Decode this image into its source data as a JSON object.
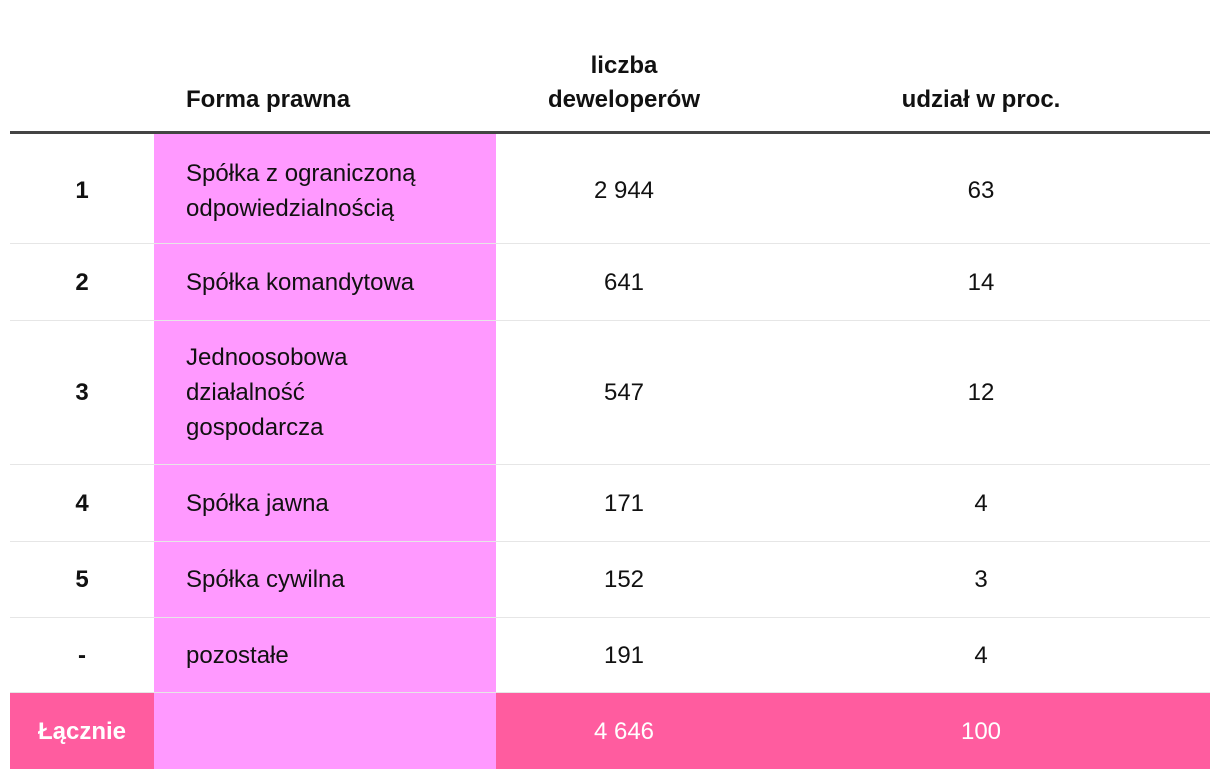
{
  "columns": {
    "num": "",
    "form": "Forma prawna",
    "developers_line1": "liczba",
    "developers_line2": "deweloperów",
    "share": "udział w proc."
  },
  "rows": [
    {
      "num": "1",
      "form": "Spółka z ograniczoną odpowiedzialnością",
      "developers": "2 944",
      "share": "63"
    },
    {
      "num": "2",
      "form": "Spółka komandytowa",
      "developers": "641",
      "share": "14"
    },
    {
      "num": "3",
      "form": "Jednoosobowa działalność gospodarcza",
      "developers": "547",
      "share": "12"
    },
    {
      "num": "4",
      "form": "Spółka jawna",
      "developers": "171",
      "share": "4"
    },
    {
      "num": "5",
      "form": "Spółka cywilna",
      "developers": "152",
      "share": "3"
    },
    {
      "num": "-",
      "form": "pozostałe",
      "developers": "191",
      "share": "4"
    }
  ],
  "total": {
    "label": "Łącznie",
    "form": "",
    "developers": "4 646",
    "share": "100"
  },
  "colors": {
    "highlight_column": "#ff99ff",
    "total_row": "#ff5c9f",
    "header_rule": "#444444"
  },
  "chart_data": {
    "type": "table",
    "columns": [
      "",
      "Forma prawna",
      "liczba deweloperów",
      "udział w proc."
    ],
    "rows": [
      [
        "1",
        "Spółka z ograniczoną odpowiedzialnością",
        2944,
        63
      ],
      [
        "2",
        "Spółka komandytowa",
        641,
        14
      ],
      [
        "3",
        "Jednoosobowa działalność gospodarcza",
        547,
        12
      ],
      [
        "4",
        "Spółka jawna",
        171,
        4
      ],
      [
        "5",
        "Spółka cywilna",
        152,
        3
      ],
      [
        "-",
        "pozostałe",
        191,
        4
      ]
    ],
    "total": [
      "Łącznie",
      "",
      4646,
      100
    ]
  }
}
